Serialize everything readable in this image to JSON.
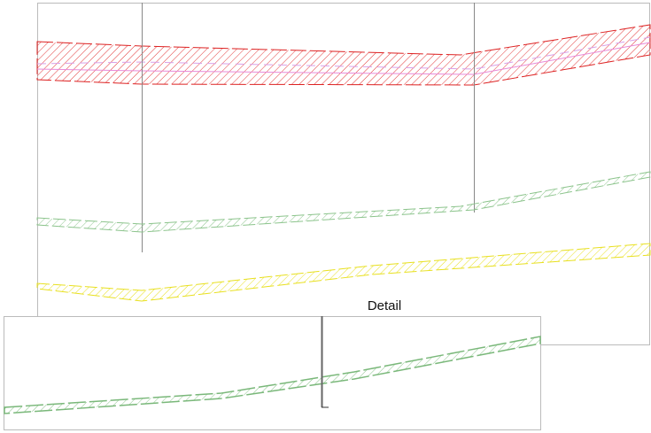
{
  "detail_label": "Detail"
}
